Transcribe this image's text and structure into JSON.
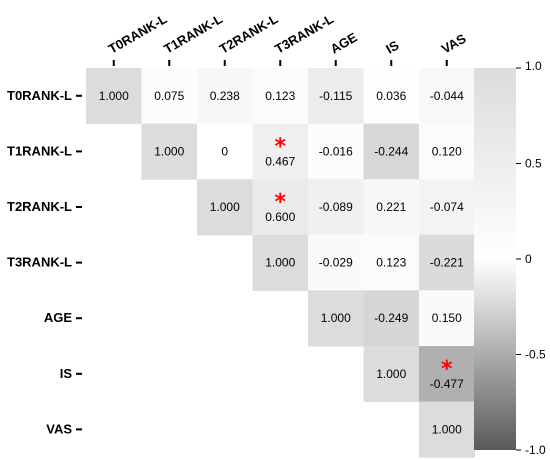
{
  "chart_data": {
    "type": "heatmap",
    "title": "",
    "variables": [
      "T0RANK-L",
      "T1RANK-L",
      "T2RANK-L",
      "T3RANK-L",
      "AGE",
      "IS",
      "VAS"
    ],
    "cells": [
      {
        "row": 0,
        "col": 0,
        "value": 1.0,
        "label": "1.000"
      },
      {
        "row": 0,
        "col": 1,
        "value": 0.075,
        "label": "0.075"
      },
      {
        "row": 0,
        "col": 2,
        "value": 0.238,
        "label": "0.238"
      },
      {
        "row": 0,
        "col": 3,
        "value": 0.123,
        "label": "0.123"
      },
      {
        "row": 0,
        "col": 4,
        "value": -0.115,
        "label": "-0.115"
      },
      {
        "row": 0,
        "col": 5,
        "value": 0.036,
        "label": "0.036"
      },
      {
        "row": 0,
        "col": 6,
        "value": -0.044,
        "label": "-0.044"
      },
      {
        "row": 1,
        "col": 1,
        "value": 1.0,
        "label": "1.000"
      },
      {
        "row": 1,
        "col": 2,
        "value": 0,
        "label": "0"
      },
      {
        "row": 1,
        "col": 3,
        "value": 0.467,
        "label": "0.467",
        "significant": true
      },
      {
        "row": 1,
        "col": 4,
        "value": -0.016,
        "label": "-0.016"
      },
      {
        "row": 1,
        "col": 5,
        "value": -0.244,
        "label": "-0.244"
      },
      {
        "row": 1,
        "col": 6,
        "value": 0.12,
        "label": "0.120"
      },
      {
        "row": 2,
        "col": 2,
        "value": 1.0,
        "label": "1.000"
      },
      {
        "row": 2,
        "col": 3,
        "value": 0.6,
        "label": "0.600",
        "significant": true
      },
      {
        "row": 2,
        "col": 4,
        "value": -0.089,
        "label": "-0.089"
      },
      {
        "row": 2,
        "col": 5,
        "value": 0.221,
        "label": "0.221"
      },
      {
        "row": 2,
        "col": 6,
        "value": -0.074,
        "label": "-0.074"
      },
      {
        "row": 3,
        "col": 3,
        "value": 1.0,
        "label": "1.000"
      },
      {
        "row": 3,
        "col": 4,
        "value": -0.029,
        "label": "-0.029"
      },
      {
        "row": 3,
        "col": 5,
        "value": 0.123,
        "label": "0.123"
      },
      {
        "row": 3,
        "col": 6,
        "value": -0.221,
        "label": "-0.221"
      },
      {
        "row": 4,
        "col": 4,
        "value": 1.0,
        "label": "1.000"
      },
      {
        "row": 4,
        "col": 5,
        "value": -0.249,
        "label": "-0.249"
      },
      {
        "row": 4,
        "col": 6,
        "value": 0.15,
        "label": "0.150"
      },
      {
        "row": 5,
        "col": 5,
        "value": 1.0,
        "label": "1.000"
      },
      {
        "row": 5,
        "col": 6,
        "value": -0.477,
        "label": "-0.477",
        "significant": true
      },
      {
        "row": 6,
        "col": 6,
        "value": 1.0,
        "label": "1.000"
      }
    ],
    "significance_marker": "*",
    "colorbar": {
      "range": [
        -1.0,
        1.0
      ],
      "ticks": [
        {
          "value": 1.0,
          "label": "1.0"
        },
        {
          "value": 0.5,
          "label": "0.5"
        },
        {
          "value": 0,
          "label": "0"
        },
        {
          "value": -0.5,
          "label": "-0.5"
        },
        {
          "value": -1.0,
          "label": "-1.0"
        }
      ],
      "color_high": "#dcdcdc",
      "color_mid": "#ffffff",
      "color_low": "#5a5a5a"
    },
    "marker_color": "#ff0000"
  }
}
